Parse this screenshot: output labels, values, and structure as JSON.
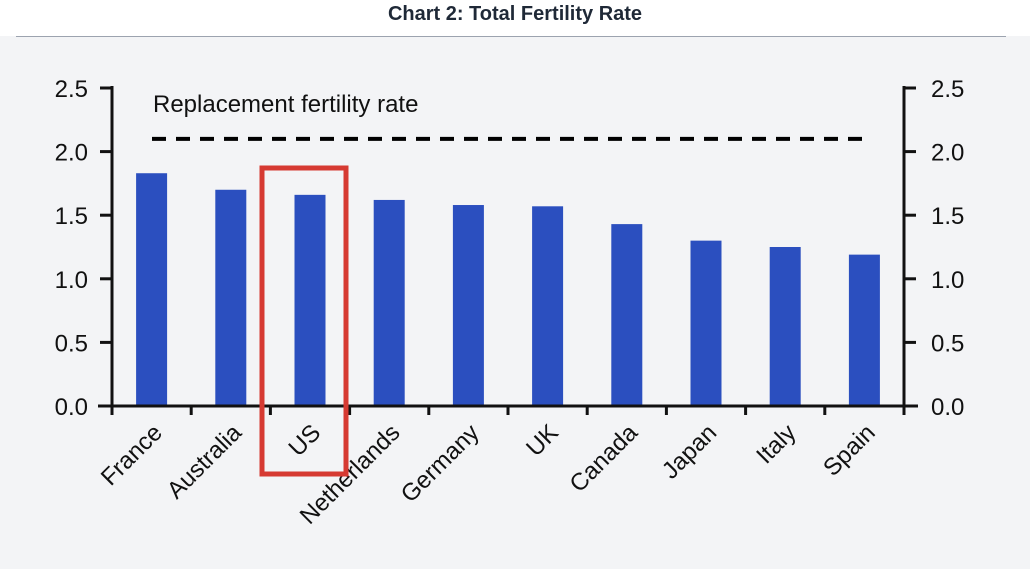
{
  "chart_data": {
    "type": "bar",
    "title": "Chart 2: Total Fertility Rate",
    "categories": [
      "France",
      "Australia",
      "US",
      "Netherlands",
      "Germany",
      "UK",
      "Canada",
      "Japan",
      "Italy",
      "Spain"
    ],
    "values": [
      1.83,
      1.7,
      1.66,
      1.62,
      1.58,
      1.57,
      1.43,
      1.3,
      1.25,
      1.19
    ],
    "ylim": [
      0,
      2.5
    ],
    "yticks": [
      "0.0",
      "0.5",
      "1.0",
      "1.5",
      "2.0",
      "2.5"
    ],
    "secondary_yticks": [
      "0.0",
      "0.5",
      "1.0",
      "1.5",
      "2.0",
      "2.5"
    ],
    "xlabel": "",
    "ylabel": "",
    "reference_line": {
      "label": "Replacement fertility rate",
      "value": 2.1
    },
    "highlighted_category": "US",
    "colors": {
      "bar": "#2b4fbf",
      "highlight_box": "#d63a32",
      "reference_line": "#000000"
    }
  }
}
